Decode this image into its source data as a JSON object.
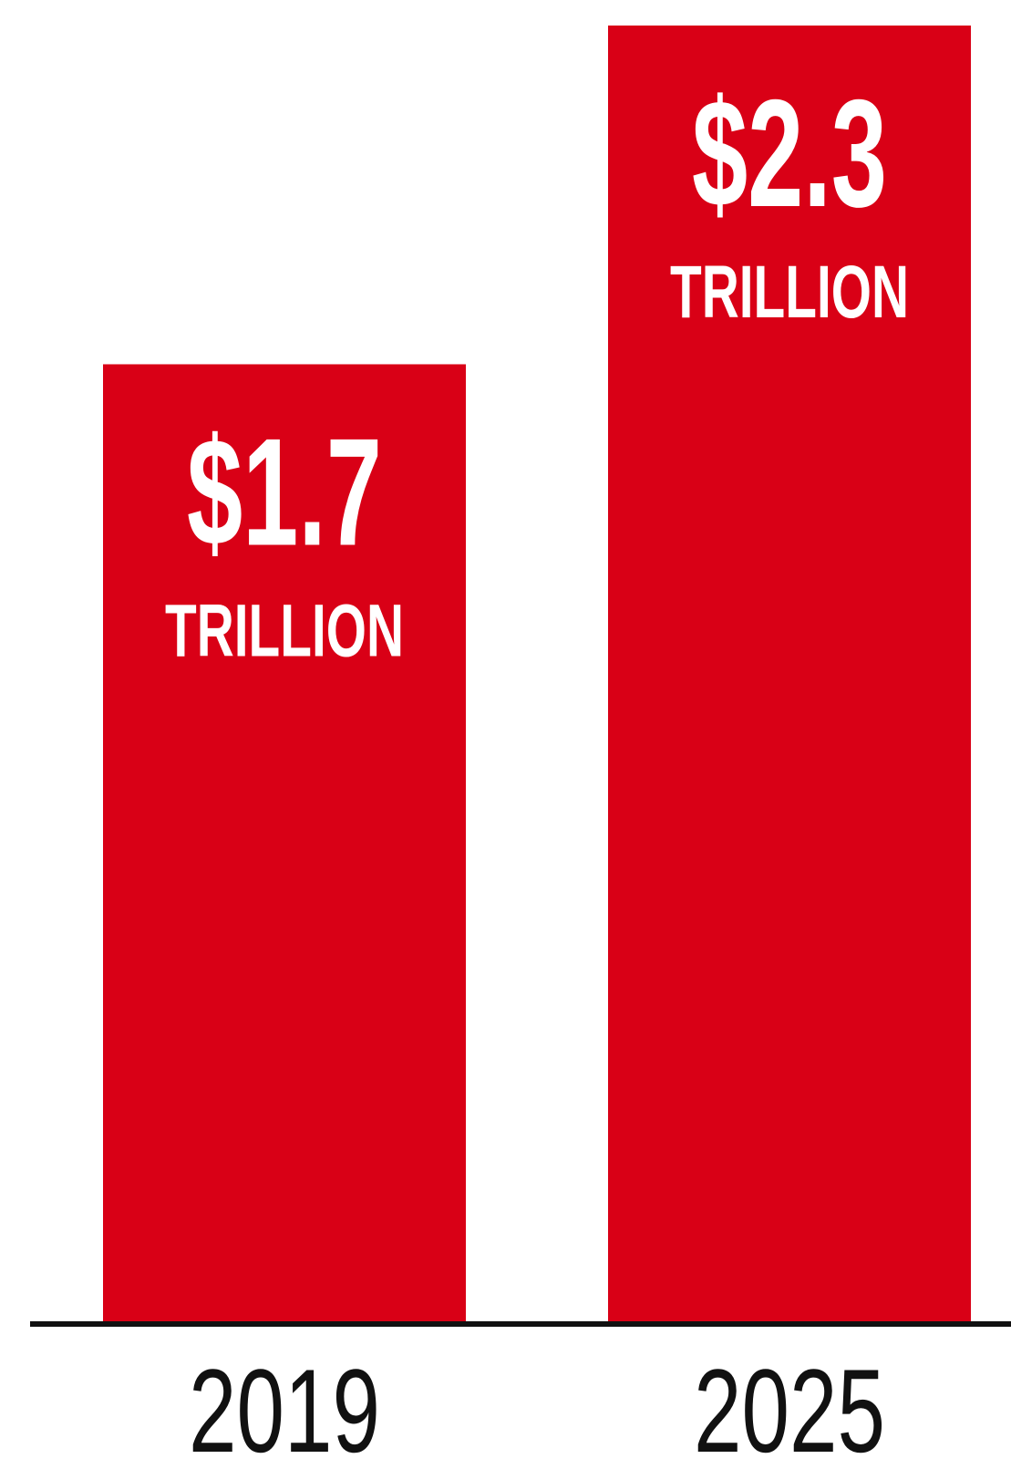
{
  "chart_data": {
    "type": "bar",
    "categories": [
      "2019",
      "2025"
    ],
    "values": [
      1.7,
      2.3
    ],
    "value_labels": [
      "$1.7",
      "$2.3"
    ],
    "unit_label": "TRILLION",
    "title": "",
    "xlabel": "",
    "ylabel": "",
    "ylim": [
      0,
      2.3
    ],
    "grid": false,
    "legend": "none",
    "colors": {
      "bar": "#d90016",
      "axis": "#111111",
      "label": "#ffffff",
      "tick": "#111111",
      "background": "#ffffff"
    }
  }
}
